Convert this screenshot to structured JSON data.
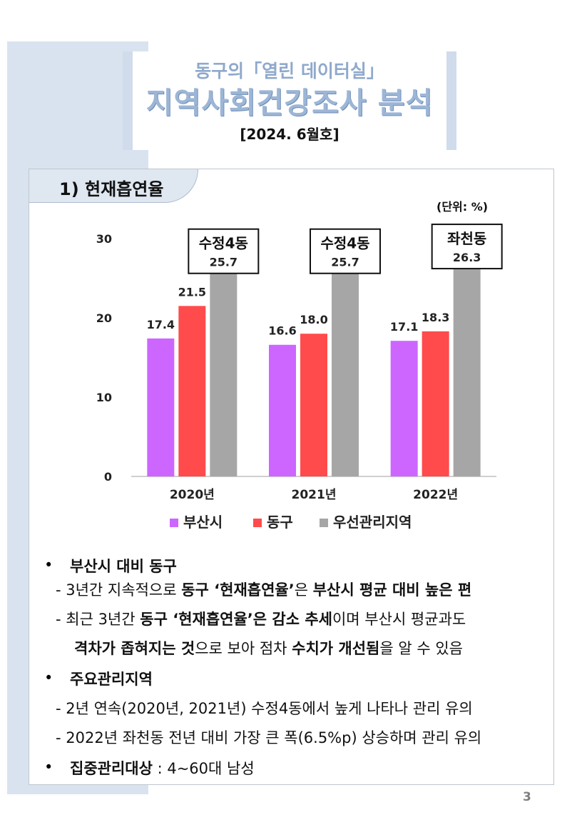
{
  "header": {
    "subtitle": "동구의「열린 데이터실」",
    "title": "지역사회건강조사 분석",
    "issue": "[2024. 6월호]"
  },
  "section": {
    "label": "1) 현재흡연율",
    "unit": "(단위: %)"
  },
  "chart_data": {
    "type": "bar",
    "categories": [
      "2020년",
      "2021년",
      "2022년"
    ],
    "series": [
      {
        "name": "부산시",
        "values": [
          17.4,
          16.6,
          17.1
        ],
        "color": "#cc66ff"
      },
      {
        "name": "동구",
        "values": [
          21.5,
          18.0,
          18.3
        ],
        "color": "#ff4b4b"
      },
      {
        "name": "우선관리지역",
        "values": [
          25.7,
          25.7,
          26.3
        ],
        "color": "#a6a6a6"
      }
    ],
    "area_labels": [
      "수정4동",
      "수정4동",
      "좌천동"
    ],
    "yticks": [
      "0",
      "10",
      "20",
      "30"
    ],
    "ylim": [
      0,
      30
    ],
    "grid": false,
    "legend_position": "bottom"
  },
  "bullets": {
    "b1_head": "부산시 대비 동구",
    "b1_l1": [
      "- 3년간 지속적으로 ",
      "동구 ‘현재흡연율’",
      "은 ",
      "부산시 평균 대비 높은 편"
    ],
    "b1_l2": [
      "- 최근 3년간 ",
      "동구 ‘현재흡연율’은 감소 추세",
      "이며 부산시 평균과도"
    ],
    "b1_l3": [
      "격차가 좁혀지는 것",
      "으로 보아 점차 ",
      "수치가 개선됨",
      "을 알 수 있음"
    ],
    "b2_head": "주요관리지역",
    "b2_l1": "- 2년 연속(2020년, 2021년) 수정4동에서 높게 나타나 관리 유의",
    "b2_l2": "- 2022년 좌천동 전년 대비 가장 큰 폭(6.5%p) 상승하며 관리 유의",
    "b3_head": "집중관리대상",
    "b3_rest": " : 4~60대 남성",
    "bullet_char": "•"
  },
  "page_number": "3"
}
